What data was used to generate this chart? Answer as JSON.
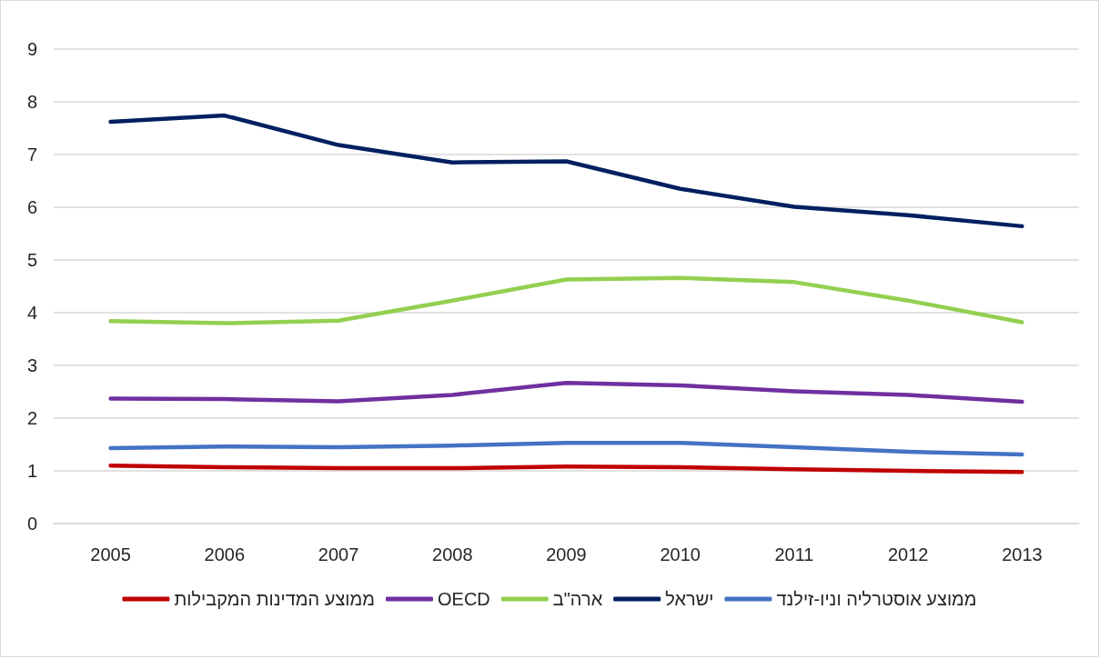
{
  "chart_data": {
    "type": "line",
    "categories": [
      "2005",
      "2006",
      "2007",
      "2008",
      "2009",
      "2010",
      "2011",
      "2012",
      "2013"
    ],
    "series": [
      {
        "name": "ממוצע המדינות המקבילות",
        "color": "#c00000",
        "values": [
          1.1,
          1.07,
          1.05,
          1.05,
          1.08,
          1.07,
          1.03,
          1.0,
          0.98
        ]
      },
      {
        "name": "OECD",
        "color": "#7030a0",
        "values": [
          2.37,
          2.36,
          2.32,
          2.44,
          2.67,
          2.62,
          2.51,
          2.44,
          2.31
        ]
      },
      {
        "name": "ארה\"ב",
        "color": "#92d050",
        "values": [
          3.84,
          3.8,
          3.85,
          4.23,
          4.63,
          4.66,
          4.58,
          4.23,
          3.82
        ]
      },
      {
        "name": "ישראל",
        "color": "#002060",
        "values": [
          7.62,
          7.74,
          7.18,
          6.85,
          6.87,
          6.35,
          6.01,
          5.85,
          5.64
        ]
      },
      {
        "name": "ממוצע אוסטרליה וניו-זילנד",
        "color": "#4472c4",
        "values": [
          1.43,
          1.46,
          1.45,
          1.48,
          1.53,
          1.53,
          1.45,
          1.36,
          1.31
        ]
      }
    ],
    "ylim": [
      0,
      9
    ],
    "yticks": [
      0,
      1,
      2,
      3,
      4,
      5,
      6,
      7,
      8,
      9
    ],
    "grid": "y",
    "legend": "bottom",
    "marker": "none",
    "line_style": "solid"
  }
}
